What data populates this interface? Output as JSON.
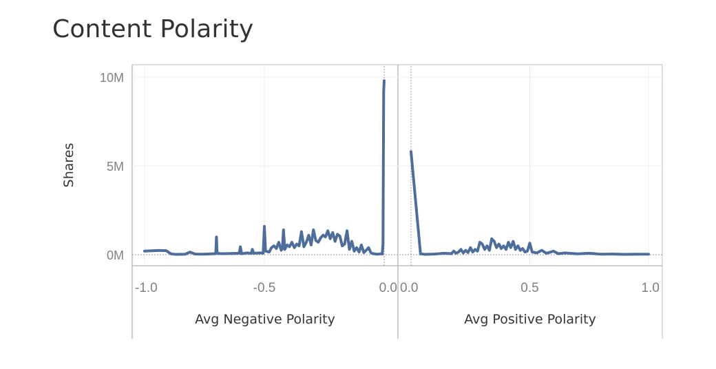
{
  "chart_data": {
    "title": "Content Polarity",
    "type": "line",
    "ylabel": "Shares",
    "ylim": [
      0,
      10000000
    ],
    "ytick_labels": [
      "10M",
      "5M",
      "0M"
    ],
    "yticks": [
      10000000,
      5000000,
      0
    ],
    "grid": true,
    "color": "#4e6d9a",
    "panels": [
      {
        "name": "negative",
        "xlabel": "Avg Negative Polarity",
        "xlim": [
          -1.0,
          0.0
        ],
        "xticks": [
          -1.0,
          -0.5,
          0.0
        ],
        "xtick_labels": [
          "-1.0",
          "-0.5",
          "0.0"
        ],
        "series": [
          {
            "x": [
              -1.0,
              -0.97,
              -0.94,
              -0.91,
              -0.89,
              -0.87,
              -0.83,
              -0.81,
              -0.79,
              -0.76,
              -0.72,
              -0.703,
              -0.7,
              -0.697,
              -0.68,
              -0.64,
              -0.605,
              -0.6,
              -0.595,
              -0.57,
              -0.555,
              -0.55,
              -0.545,
              -0.52,
              -0.505,
              -0.5,
              -0.495,
              -0.48,
              -0.47,
              -0.46,
              -0.45,
              -0.44,
              -0.43,
              -0.425,
              -0.42,
              -0.415,
              -0.405,
              -0.395,
              -0.385,
              -0.375,
              -0.365,
              -0.355,
              -0.345,
              -0.335,
              -0.325,
              -0.315,
              -0.305,
              -0.295,
              -0.285,
              -0.275,
              -0.265,
              -0.255,
              -0.245,
              -0.235,
              -0.225,
              -0.215,
              -0.205,
              -0.195,
              -0.185,
              -0.175,
              -0.165,
              -0.155,
              -0.145,
              -0.135,
              -0.125,
              -0.115,
              -0.105,
              -0.095,
              -0.085,
              -0.075,
              -0.065,
              -0.055,
              -0.045,
              -0.035,
              -0.025,
              -0.015,
              -0.008,
              -0.005,
              -0.002,
              0.0
            ],
            "values": [
              200000,
              220000,
              240000,
              230000,
              50000,
              20000,
              30000,
              150000,
              40000,
              30000,
              50000,
              60000,
              1000000,
              80000,
              60000,
              70000,
              80000,
              450000,
              60000,
              100000,
              70000,
              300000,
              80000,
              100000,
              90000,
              1600000,
              200000,
              150000,
              400000,
              500000,
              350000,
              700000,
              250000,
              350000,
              1400000,
              300000,
              550000,
              450000,
              700000,
              400000,
              600000,
              500000,
              1300000,
              450000,
              700000,
              1100000,
              550000,
              1400000,
              800000,
              700000,
              950000,
              1100000,
              1000000,
              1350000,
              900000,
              1250000,
              750000,
              1150000,
              1050000,
              500000,
              600000,
              1350000,
              300000,
              750000,
              200000,
              400000,
              150000,
              550000,
              120000,
              250000,
              400000,
              100000,
              60000,
              40000,
              30000,
              50000,
              40000,
              600000,
              9200000,
              9800000
            ]
          }
        ]
      },
      {
        "name": "positive",
        "xlabel": "Avg Positive Polarity",
        "xlim": [
          0.0,
          1.0
        ],
        "xticks": [
          0.0,
          0.5,
          1.0
        ],
        "xtick_labels": [
          "0.0",
          "0.5",
          "1.0"
        ],
        "series": [
          {
            "x": [
              0.0,
              0.04,
              0.06,
              0.1,
              0.14,
              0.17,
              0.18,
              0.19,
              0.2,
              0.21,
              0.22,
              0.23,
              0.24,
              0.25,
              0.26,
              0.27,
              0.28,
              0.29,
              0.3,
              0.31,
              0.32,
              0.33,
              0.34,
              0.35,
              0.36,
              0.37,
              0.38,
              0.39,
              0.4,
              0.41,
              0.42,
              0.43,
              0.44,
              0.45,
              0.46,
              0.47,
              0.48,
              0.49,
              0.5,
              0.51,
              0.53,
              0.55,
              0.57,
              0.6,
              0.62,
              0.65,
              0.7,
              0.75,
              0.8,
              0.85,
              0.9,
              0.95,
              1.0
            ],
            "values": [
              5800000,
              50000,
              20000,
              40000,
              80000,
              60000,
              200000,
              80000,
              150000,
              300000,
              100000,
              250000,
              120000,
              400000,
              150000,
              300000,
              200000,
              700000,
              600000,
              300000,
              500000,
              250000,
              900000,
              750000,
              400000,
              600000,
              350000,
              500000,
              300000,
              700000,
              400000,
              750000,
              300000,
              500000,
              250000,
              350000,
              150000,
              200000,
              650000,
              150000,
              100000,
              250000,
              80000,
              200000,
              60000,
              100000,
              50000,
              80000,
              30000,
              40000,
              20000,
              30000,
              30000
            ]
          }
        ]
      }
    ]
  }
}
